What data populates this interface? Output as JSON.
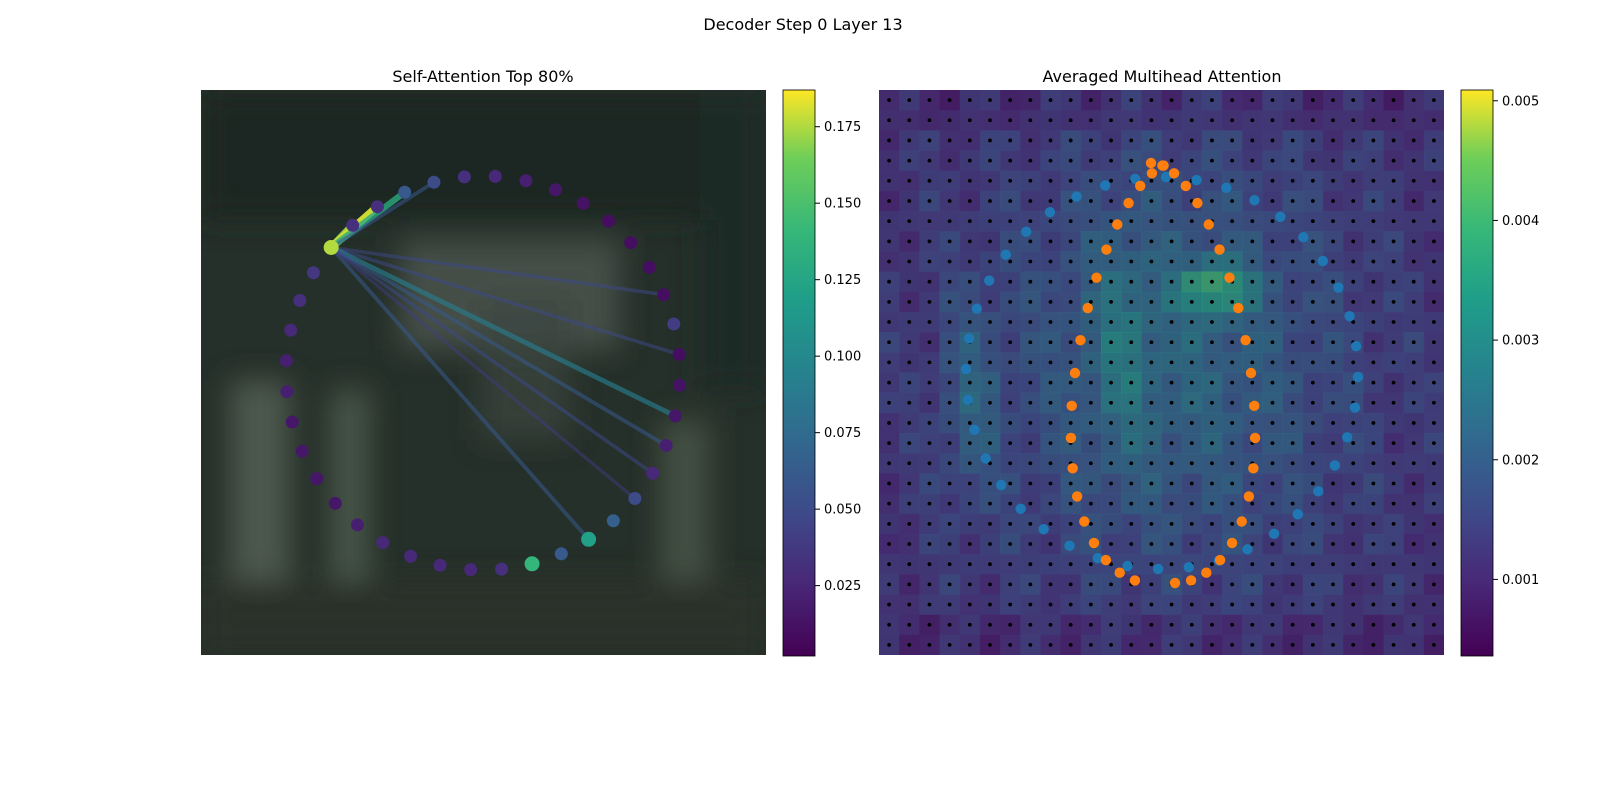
{
  "figure": {
    "title": "Decoder Step 0 Layer 13"
  },
  "chart_data": [
    {
      "type": "scatter",
      "title": "Self-Attention Top 80%",
      "description_hint": "ring of 40 query points over blurred image; colored by attention weight",
      "n_points": 40,
      "point_values": [
        0.175,
        0.03,
        0.03,
        0.06,
        0.05,
        0.03,
        0.025,
        0.02,
        0.015,
        0.012,
        0.01,
        0.01,
        0.01,
        0.01,
        0.04,
        0.01,
        0.012,
        0.015,
        0.02,
        0.025,
        0.05,
        0.065,
        0.12,
        0.06,
        0.14,
        0.03,
        0.025,
        0.025,
        0.025,
        0.025,
        0.02,
        0.015,
        0.015,
        0.015,
        0.015,
        0.02,
        0.02,
        0.025,
        0.03,
        0.035
      ],
      "edges": [
        {
          "from": 0,
          "to": 1,
          "weight": 0.17
        },
        {
          "from": 0,
          "to": 2,
          "weight": 0.18
        },
        {
          "from": 0,
          "to": 3,
          "weight": 0.13
        },
        {
          "from": 0,
          "to": 4,
          "weight": 0.06
        },
        {
          "from": 0,
          "to": 13,
          "weight": 0.05
        },
        {
          "from": 0,
          "to": 15,
          "weight": 0.05
        },
        {
          "from": 0,
          "to": 17,
          "weight": 0.09
        },
        {
          "from": 0,
          "to": 18,
          "weight": 0.06
        },
        {
          "from": 0,
          "to": 19,
          "weight": 0.05
        },
        {
          "from": 0,
          "to": 22,
          "weight": 0.06
        },
        {
          "from": 0,
          "to": 20,
          "weight": 0.04
        }
      ],
      "colorbar": {
        "ticks": [
          "0.025",
          "0.050",
          "0.075",
          "0.100",
          "0.125",
          "0.150",
          "0.175"
        ],
        "tick_values": [
          0.025,
          0.05,
          0.075,
          0.1,
          0.125,
          0.15,
          0.175
        ],
        "range": [
          0.002,
          0.187
        ]
      }
    },
    {
      "type": "heatmap",
      "title": "Averaged Multihead Attention",
      "grid_size": 28,
      "colorbar": {
        "ticks": [
          "0.001",
          "0.002",
          "0.003",
          "0.004",
          "0.005"
        ],
        "tick_values": [
          0.001,
          0.002,
          0.003,
          0.004,
          0.005
        ],
        "range": [
          0.00036,
          0.00509
        ]
      },
      "series": [
        {
          "color": "#1f77b4",
          "count": 40,
          "shape": "outer-ring"
        },
        {
          "color": "#ff7f0e",
          "count": 40,
          "shape": "inner-loop"
        }
      ]
    }
  ]
}
